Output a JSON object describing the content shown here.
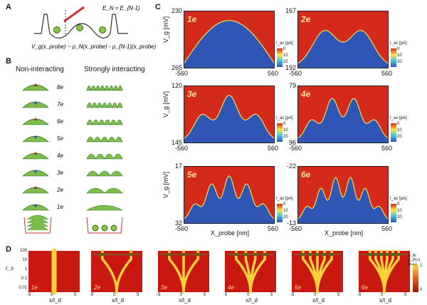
{
  "panel_labels": {
    "a": "A",
    "b": "B",
    "c": "C",
    "d": "D"
  },
  "panel_a": {
    "equation_top": "E_N = E_{N-1}",
    "formula": "V_g(x_probe) ~ ρ_N(x_probe) - ρ_{N-1}(x_probe)"
  },
  "panel_b": {
    "col_non": "Non-interacting",
    "col_strong": "Strongly interacting",
    "rows": [
      "8e",
      "7e",
      "6e",
      "5e",
      "4e",
      "3e",
      "2e",
      "1e"
    ]
  },
  "panel_c": {
    "colorbar_label": "I_ac [pA]",
    "colorbar_ticks": [
      "0",
      "10",
      "20"
    ],
    "y_axis_label": "V_g [mV]",
    "x_axis_label": "X_probe [nm]",
    "x_ticks": [
      "-560",
      "560"
    ],
    "maps": [
      {
        "label": "1e",
        "ytop": "230",
        "ybottom": "265"
      },
      {
        "label": "2e",
        "ytop": "167",
        "ybottom": "192"
      },
      {
        "label": "3e",
        "ytop": "120",
        "ybottom": "145"
      },
      {
        "label": "4e",
        "ytop": "79",
        "ybottom": "96"
      },
      {
        "label": "5e",
        "ytop": "17",
        "ybottom": "32"
      },
      {
        "label": "6e",
        "ytop": "-22",
        "ybottom": "-13"
      }
    ]
  },
  "panel_d": {
    "y_axis_label": "r_s",
    "y_ticks": [
      "100",
      "10",
      "1",
      "0.1",
      "0.01"
    ],
    "x_ticks": [
      "-5",
      "0",
      "5"
    ],
    "x_axis_label": "x/l_d",
    "colorbar_label": "ρ_N/ρ_{N,c} [a.u.]",
    "colorbar_ticks": [
      "1",
      "0"
    ],
    "maps": [
      "1e",
      "2e",
      "3e",
      "4e",
      "5e",
      "6e"
    ]
  },
  "colors": {
    "map_red": "#d42a1c",
    "map_blue": "#2f56b4",
    "green": "#7bbf4a",
    "dark_green": "#2f6d25"
  }
}
